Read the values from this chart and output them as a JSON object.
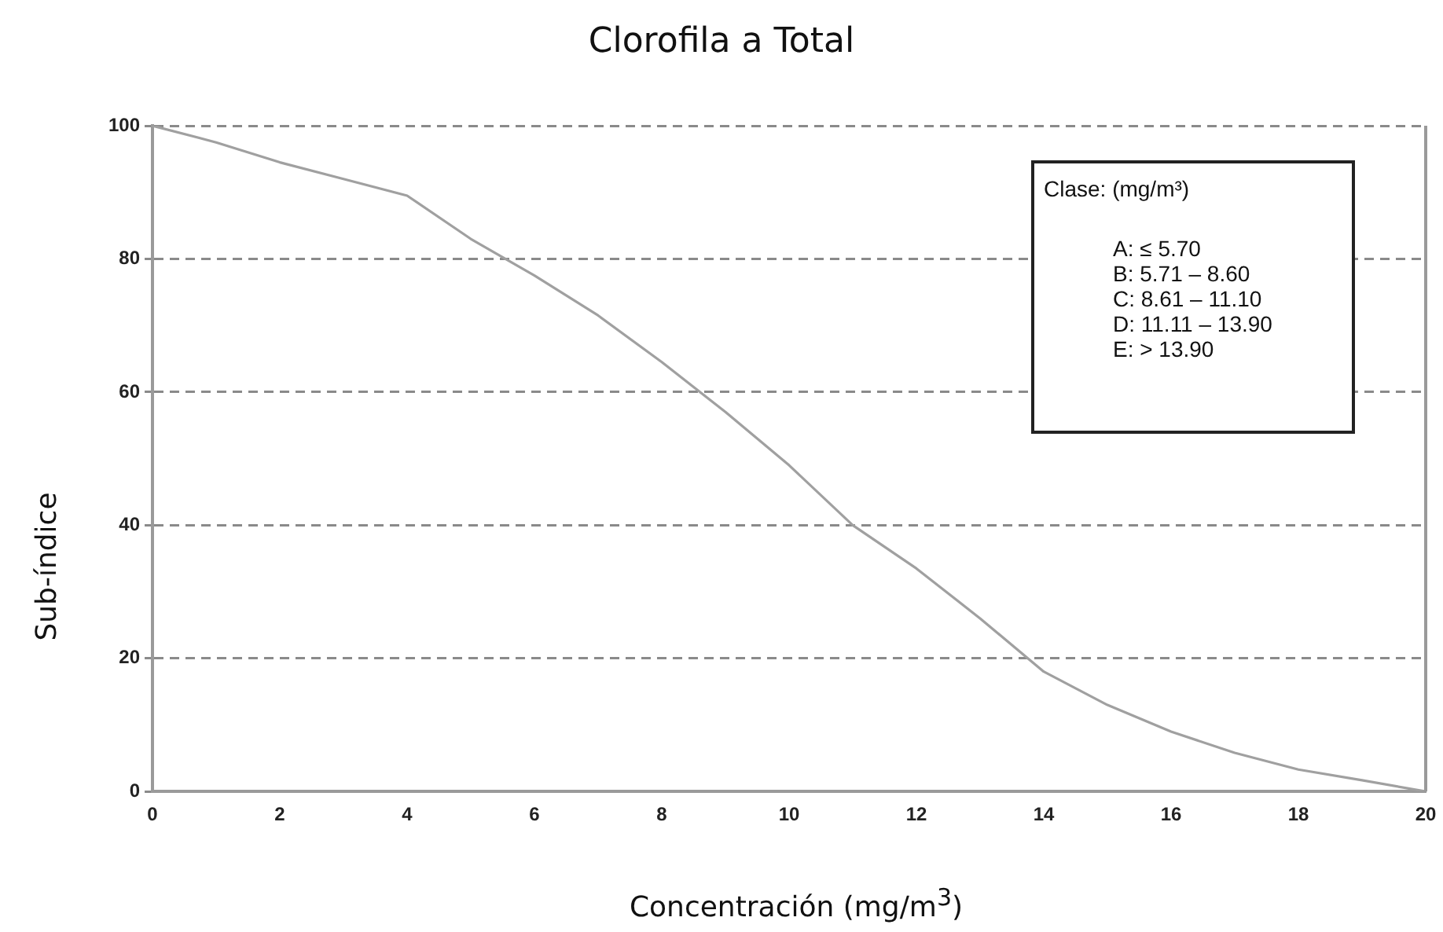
{
  "chart_data": {
    "type": "line",
    "title": "Clorofila a Total",
    "xlabel": "Concentración (mg/m$^{3}$)",
    "ylabel": "Sub-índice",
    "x": [
      0,
      1,
      2,
      3,
      4,
      5,
      6,
      7,
      8,
      9,
      10,
      11,
      12,
      13,
      14,
      15,
      16,
      17,
      18,
      19,
      20
    ],
    "series": [
      {
        "color": "#a0a0a0",
        "values": [
          100,
          97.5,
          94.5,
          92,
          89.5,
          83,
          77.5,
          71.5,
          64.5,
          57,
          49,
          40,
          33.5,
          26,
          18,
          13,
          9,
          5.8,
          3.3,
          1.7,
          0
        ]
      }
    ],
    "xlim": [
      0,
      20
    ],
    "xticks": [
      0,
      2,
      4,
      6,
      8,
      10,
      12,
      14,
      16,
      18,
      20
    ],
    "ylim": [
      0,
      100
    ],
    "yticks": [
      0,
      20,
      40,
      60,
      80,
      100
    ],
    "grid": "y",
    "legend": false,
    "marker": "none",
    "line_style": "solid",
    "annotations": [
      "Clase: (mg/m³)",
      "A: ≤ 5.70",
      "B: 5.71 – 8.60",
      "C: 8.61 – 11.10",
      "D: 11.11 – 13.90",
      "E: > 13.90"
    ]
  }
}
